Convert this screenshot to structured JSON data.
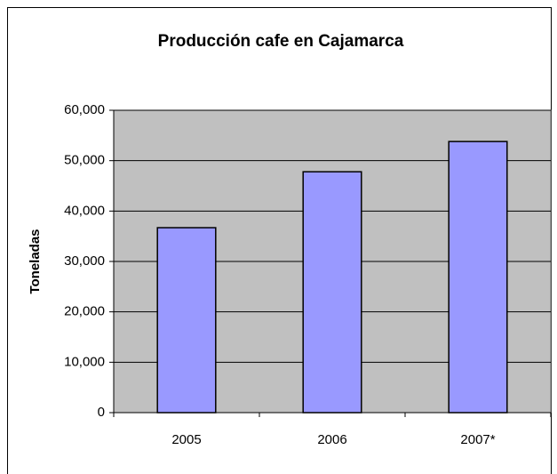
{
  "chart_data": {
    "type": "bar",
    "title": "Producción cafe en Cajamarca",
    "y_label": "Toneladas",
    "categories": [
      "2005",
      "2006",
      "2007*"
    ],
    "values": [
      36700,
      47800,
      53800
    ],
    "color": "#9999ff",
    "ylim": [
      0,
      60000
    ],
    "yticks": [
      0,
      {
        "value": 10000,
        "label": "10,000"
      },
      {
        "value": 20000,
        "label": "20,000"
      },
      {
        "value": 30000,
        "label": "30,000"
      },
      {
        "value": 40000,
        "label": "40,000"
      },
      {
        "value": 50000,
        "label": "50,000"
      },
      {
        "value": 60000,
        "label": "60,000"
      }
    ],
    "grid": true
  }
}
